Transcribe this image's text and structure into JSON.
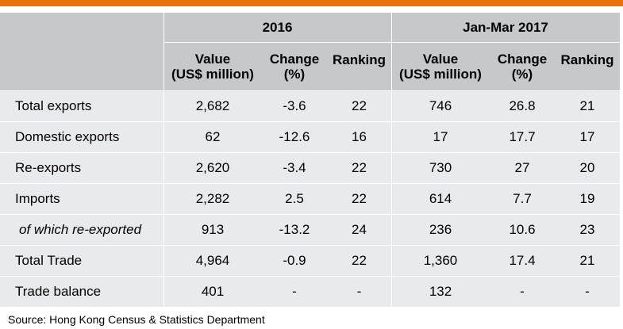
{
  "header": {
    "period1": "2016",
    "period2": "Jan-Mar 2017",
    "col_value_line1": "Value",
    "col_value_line2": "(US$ million)",
    "col_change_line1": "Change",
    "col_change_line2": "(%)",
    "col_ranking": "Ranking"
  },
  "rows": [
    {
      "label": "Total exports",
      "v2016": "2,682",
      "c2016": "-3.6",
      "r2016": "22",
      "v2017": "746",
      "c2017": "26.8",
      "r2017": "21"
    },
    {
      "label": "Domestic exports",
      "v2016": "62",
      "c2016": "-12.6",
      "r2016": "16",
      "v2017": "17",
      "c2017": "17.7",
      "r2017": "17"
    },
    {
      "label": "Re-exports",
      "v2016": "2,620",
      "c2016": "-3.4",
      "r2016": "22",
      "v2017": "730",
      "c2017": "27",
      "r2017": "20"
    },
    {
      "label": "Imports",
      "v2016": "2,282",
      "c2016": "2.5",
      "r2016": "22",
      "v2017": "614",
      "c2017": "7.7",
      "r2017": "19"
    },
    {
      "label": "of which re-exported",
      "v2016": "913",
      "c2016": "-13.2",
      "r2016": "24",
      "v2017": "236",
      "c2017": "10.6",
      "r2017": "23"
    },
    {
      "label": "Total Trade",
      "v2016": "4,964",
      "c2016": "-0.9",
      "r2016": "22",
      "v2017": "1,360",
      "c2017": "17.4",
      "r2017": "21"
    },
    {
      "label": "Trade balance",
      "v2016": "401",
      "c2016": "-",
      "r2016": "-",
      "v2017": "132",
      "c2017": "-",
      "r2017": "-"
    }
  ],
  "source": "Source: Hong Kong Census & Statistics Department",
  "colors": {
    "accent_bar": "#e8720c",
    "header_fill": "#c6c9cb",
    "row_fill": "#e9eaeb"
  }
}
